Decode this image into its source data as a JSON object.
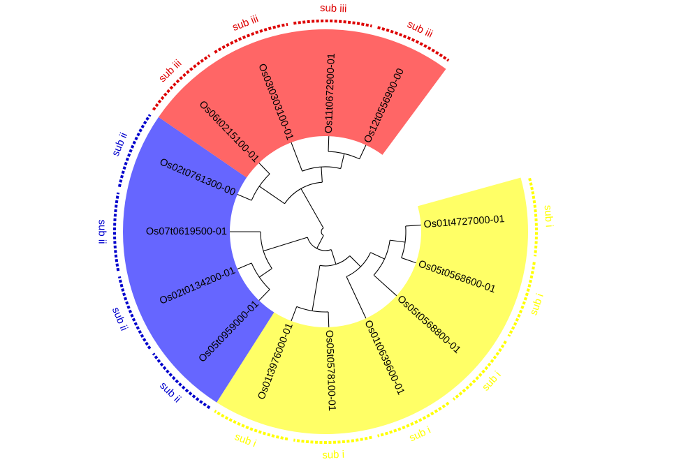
{
  "groups": {
    "sub_i": {
      "label": "sub i",
      "color": "#ffff00",
      "fill": "#ffff66"
    },
    "sub_ii": {
      "label": "sub ii",
      "color": "#0000cc",
      "fill": "#6666ff"
    },
    "sub_iii": {
      "label": "sub iii",
      "color": "#dd0000",
      "fill": "#ff6666"
    }
  },
  "leaves": [
    {
      "name": "Os01t4727000-01",
      "group": "sub_i"
    },
    {
      "name": "Os05t0568600-01",
      "group": "sub_i"
    },
    {
      "name": "Os05t0568800-01",
      "group": "sub_i"
    },
    {
      "name": "Os01t0639600-01",
      "group": "sub_i"
    },
    {
      "name": "Os05t0578100-01",
      "group": "sub_i"
    },
    {
      "name": "Os01t3976000-01",
      "group": "sub_i"
    },
    {
      "name": "Os05t0959000-01",
      "group": "sub_ii"
    },
    {
      "name": "Os02t0134200-01",
      "group": "sub_ii"
    },
    {
      "name": "Os07t0619500-01",
      "group": "sub_ii"
    },
    {
      "name": "Os02t0761300-00",
      "group": "sub_ii"
    },
    {
      "name": "Os06t0215100-01",
      "group": "sub_iii"
    },
    {
      "name": "Os03t0303100-01",
      "group": "sub_iii"
    },
    {
      "name": "Os11t0672900-01",
      "group": "sub_iii"
    },
    {
      "name": "Os12t0556900-00",
      "group": "sub_iii"
    }
  ]
}
